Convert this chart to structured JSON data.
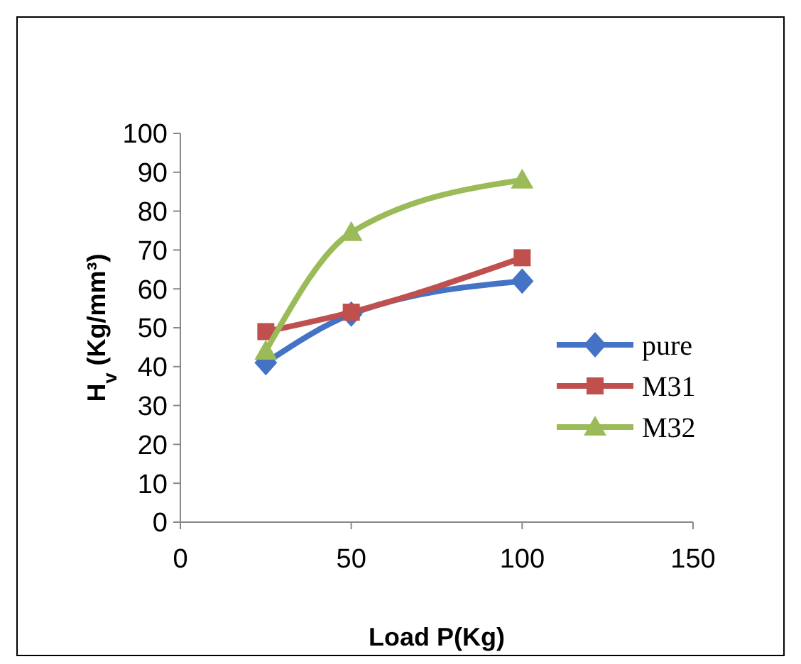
{
  "chart_data": {
    "type": "line",
    "xlabel": "Load P(Kg)",
    "ylabel": "H$_{v}$ (Kg/mm³)",
    "xlim": [
      0,
      150
    ],
    "xticks": [
      0,
      50,
      100,
      150
    ],
    "ylim": [
      0,
      100
    ],
    "yticks": [
      0,
      10,
      20,
      30,
      40,
      50,
      60,
      70,
      80,
      90,
      100
    ],
    "grid": false,
    "legend": "right",
    "series": [
      {
        "name": "pure",
        "color": "#4472c4",
        "marker": "diamond",
        "x": [
          25,
          50,
          100
        ],
        "values": [
          41,
          53.5,
          62
        ]
      },
      {
        "name": "M31",
        "color": "#c0504d",
        "marker": "square",
        "x": [
          25,
          50,
          100
        ],
        "values": [
          49,
          54,
          68
        ]
      },
      {
        "name": "M32",
        "color": "#9bbb59",
        "marker": "triangle",
        "x": [
          25,
          50,
          100
        ],
        "values": [
          44,
          74.5,
          88
        ]
      }
    ]
  }
}
